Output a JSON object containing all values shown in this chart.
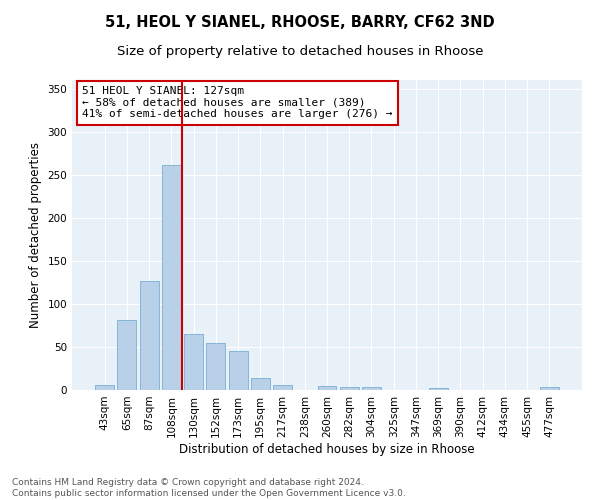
{
  "title1": "51, HEOL Y SIANEL, RHOOSE, BARRY, CF62 3ND",
  "title2": "Size of property relative to detached houses in Rhoose",
  "xlabel": "Distribution of detached houses by size in Rhoose",
  "ylabel": "Number of detached properties",
  "categories": [
    "43sqm",
    "65sqm",
    "87sqm",
    "108sqm",
    "130sqm",
    "152sqm",
    "173sqm",
    "195sqm",
    "217sqm",
    "238sqm",
    "260sqm",
    "282sqm",
    "304sqm",
    "325sqm",
    "347sqm",
    "369sqm",
    "390sqm",
    "412sqm",
    "434sqm",
    "455sqm",
    "477sqm"
  ],
  "values": [
    6,
    81,
    127,
    261,
    65,
    55,
    45,
    14,
    6,
    0,
    5,
    4,
    4,
    0,
    0,
    2,
    0,
    0,
    0,
    0,
    3
  ],
  "bar_color": "#b8d0e8",
  "bar_edge_color": "#7aafd4",
  "vline_color": "#cc0000",
  "annotation_text": "51 HEOL Y SIANEL: 127sqm\n← 58% of detached houses are smaller (389)\n41% of semi-detached houses are larger (276) →",
  "annotation_box_color": "#ffffff",
  "annotation_box_edge_color": "#cc0000",
  "ylim": [
    0,
    360
  ],
  "yticks": [
    0,
    50,
    100,
    150,
    200,
    250,
    300,
    350
  ],
  "bg_color": "#e8f0f8",
  "footer_text": "Contains HM Land Registry data © Crown copyright and database right 2024.\nContains public sector information licensed under the Open Government Licence v3.0.",
  "title_fontsize": 10.5,
  "subtitle_fontsize": 9.5,
  "axis_label_fontsize": 8.5,
  "tick_fontsize": 7.5,
  "annotation_fontsize": 8,
  "footer_fontsize": 6.5
}
